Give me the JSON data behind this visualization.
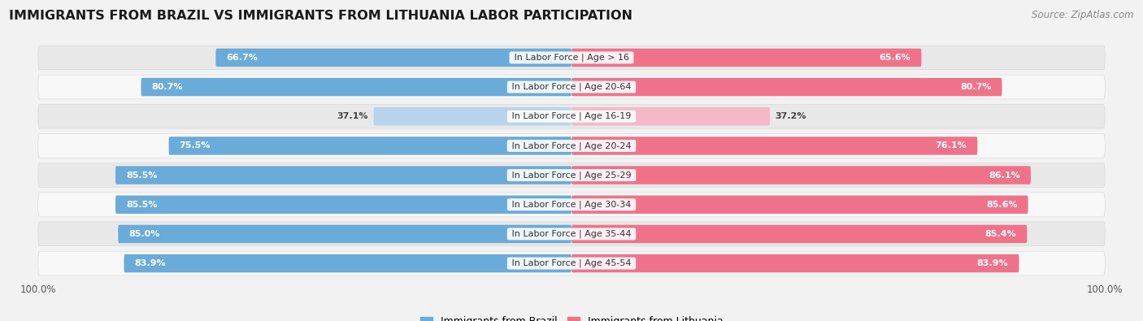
{
  "title": "IMMIGRANTS FROM BRAZIL VS IMMIGRANTS FROM LITHUANIA LABOR PARTICIPATION",
  "source": "Source: ZipAtlas.com",
  "categories": [
    "In Labor Force | Age > 16",
    "In Labor Force | Age 20-64",
    "In Labor Force | Age 16-19",
    "In Labor Force | Age 20-24",
    "In Labor Force | Age 25-29",
    "In Labor Force | Age 30-34",
    "In Labor Force | Age 35-44",
    "In Labor Force | Age 45-54"
  ],
  "brazil_values": [
    66.7,
    80.7,
    37.1,
    75.5,
    85.5,
    85.5,
    85.0,
    83.9
  ],
  "lithuania_values": [
    65.6,
    80.7,
    37.2,
    76.1,
    86.1,
    85.6,
    85.4,
    83.9
  ],
  "brazil_color_strong": "#6aabd9",
  "brazil_color_light": "#b8d4ed",
  "lithuania_color_strong": "#f0728a",
  "lithuania_color_light": "#f5b8c8",
  "background_color": "#f2f2f2",
  "row_bg_even": "#e8e8e8",
  "row_bg_odd": "#f8f8f8",
  "legend_brazil": "Immigrants from Brazil",
  "legend_lithuania": "Immigrants from Lithuania",
  "title_fontsize": 11.5,
  "label_fontsize": 8,
  "value_fontsize": 8,
  "source_fontsize": 8.5,
  "threshold_light": 50
}
